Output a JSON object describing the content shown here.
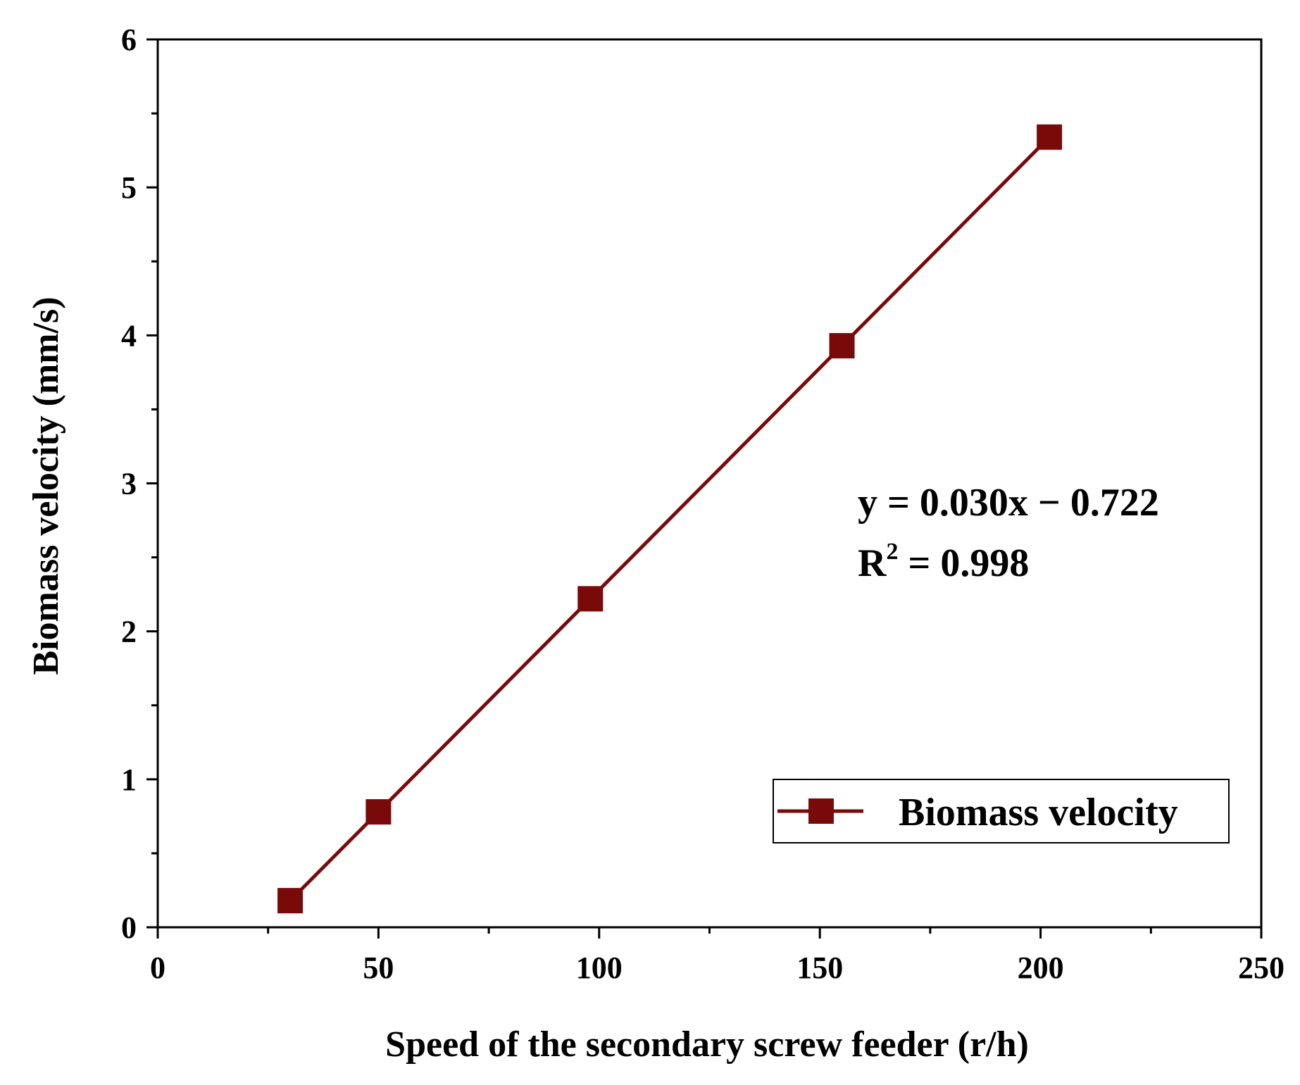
{
  "chart_data": {
    "type": "line",
    "title": "",
    "xlabel": "Speed of the secondary screw feeder (r/h)",
    "ylabel": "Biomass velocity (mm/s)",
    "xlim": [
      0,
      250
    ],
    "ylim": [
      0,
      6
    ],
    "xticks": [
      0,
      50,
      100,
      150,
      200,
      250
    ],
    "yticks": [
      0,
      1,
      2,
      3,
      4,
      5,
      6
    ],
    "grid": false,
    "legend_position": "bottom-right",
    "series": [
      {
        "name": "Biomass velocity",
        "color": "#7a0a0a",
        "marker": "square",
        "x": [
          30,
          50,
          98,
          155,
          202
        ],
        "y": [
          0.18,
          0.78,
          2.22,
          3.93,
          5.34
        ]
      }
    ],
    "annotations": {
      "equation": "y = 0.030x − 0.722",
      "r2_prefix": "R",
      "r2_sup": "2",
      "r2_value": " = 0.998"
    }
  }
}
